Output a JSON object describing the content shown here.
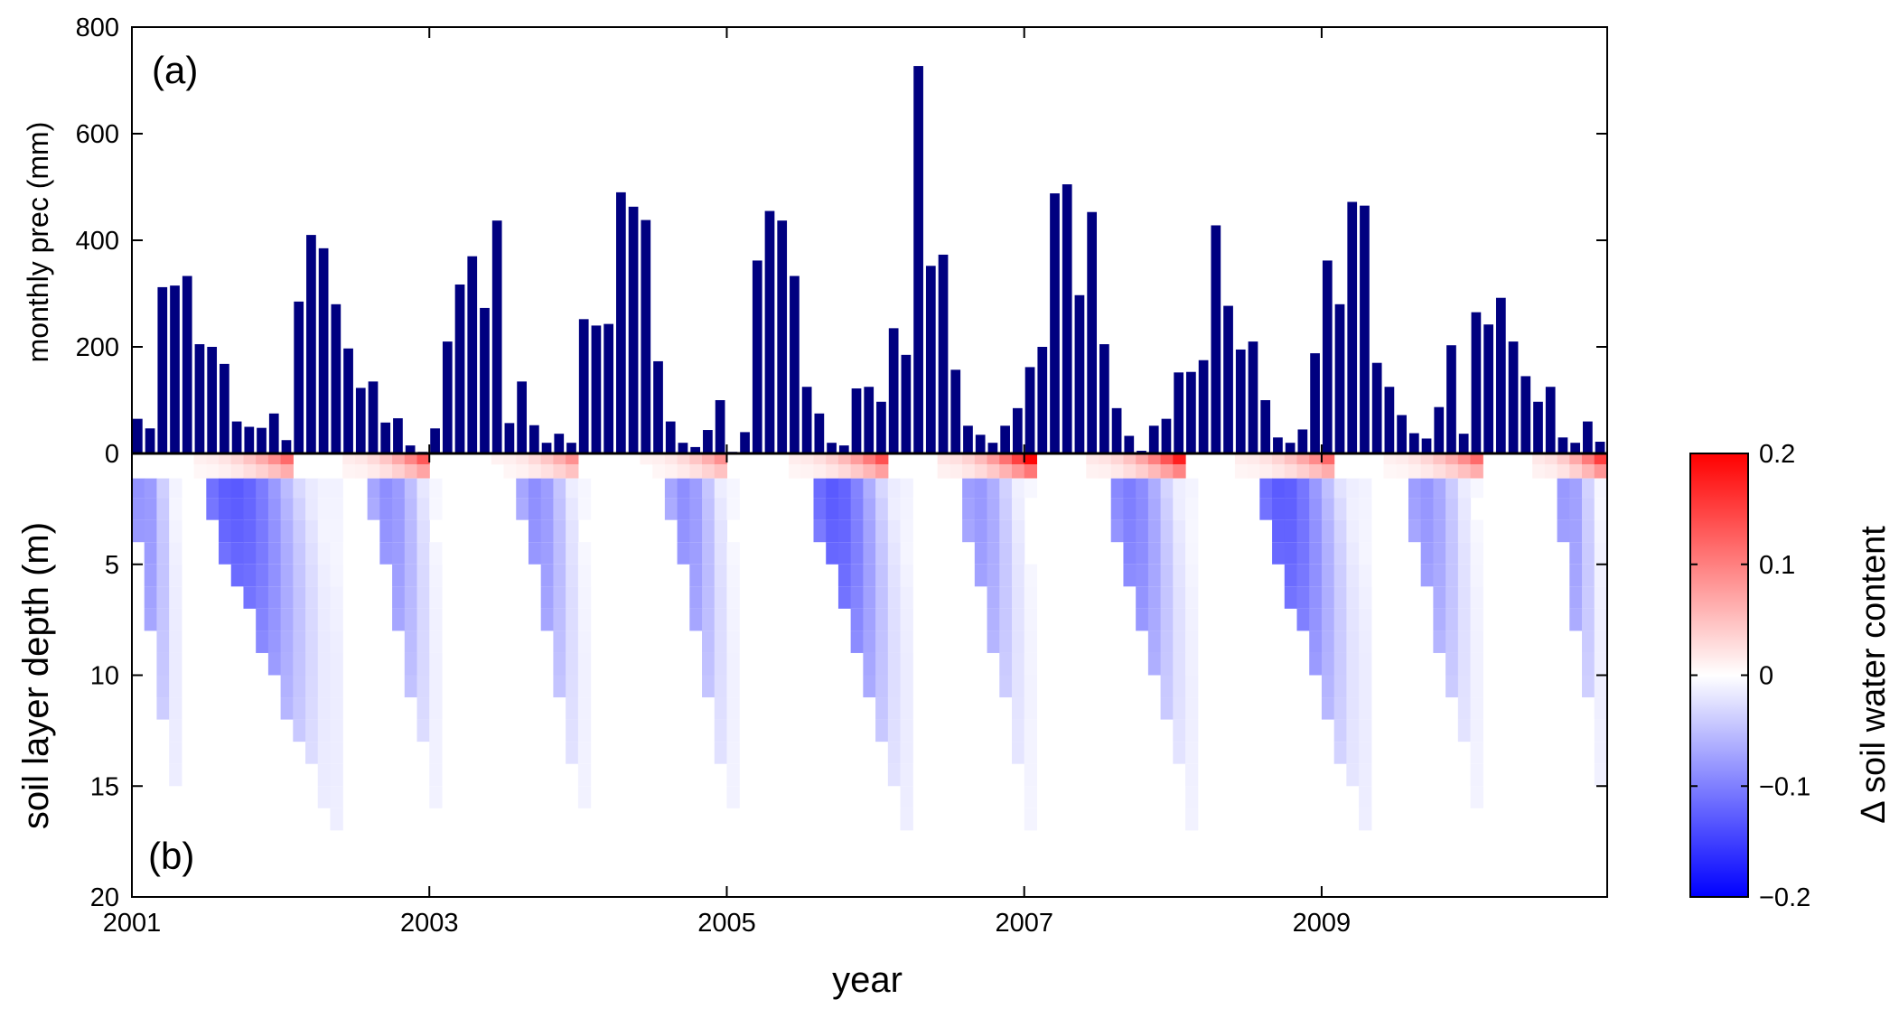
{
  "chart_data": [
    {
      "panel": "(a)",
      "type": "bar",
      "ylabel": "monthly prec (mm)",
      "ylim": [
        0,
        800
      ],
      "yticks": [
        "0",
        "200",
        "400",
        "600",
        "800"
      ],
      "xlim": [
        2001,
        2010.92
      ],
      "grid": false,
      "color": "#000080",
      "x_start": "2001-01",
      "x_step": "1 month",
      "values": [
        65,
        47,
        312,
        315,
        333,
        205,
        200,
        168,
        60,
        50,
        48,
        75,
        25,
        285,
        410,
        385,
        280,
        197,
        123,
        135,
        58,
        66,
        15,
        3,
        47,
        210,
        317,
        370,
        273,
        437,
        57,
        135,
        53,
        20,
        37,
        20,
        252,
        240,
        243,
        490,
        463,
        438,
        173,
        60,
        20,
        12,
        44,
        100,
        3,
        40,
        362,
        455,
        437,
        333,
        125,
        75,
        20,
        15,
        122,
        125,
        97,
        235,
        185,
        727,
        352,
        373,
        157,
        52,
        35,
        20,
        52,
        85,
        162,
        200,
        488,
        505,
        297,
        453,
        205,
        85,
        33,
        5,
        52,
        65,
        152,
        153,
        175,
        428,
        277,
        195,
        210,
        100,
        30,
        20,
        45,
        188,
        362,
        280,
        472,
        465,
        170,
        125,
        72,
        38,
        28,
        87,
        203,
        37,
        265,
        242,
        292,
        210,
        145,
        97,
        125,
        30,
        20,
        60,
        22
      ]
    },
    {
      "panel": "(b)",
      "type": "heatmap",
      "xlabel": "year",
      "ylabel": "soil layer depth (m)",
      "xticks": [
        "2001",
        "2003",
        "2005",
        "2007",
        "2009"
      ],
      "yticks": [
        "0",
        "5",
        "10",
        "15",
        "20"
      ],
      "ylim": [
        0,
        20
      ],
      "colorbar": {
        "label": "Δ soil water content",
        "ticks": [
          "0.2",
          "0.1",
          "0",
          "−0.1",
          "−0.2"
        ],
        "range": [
          -0.2,
          0.2
        ],
        "colormap": [
          "#0000ff",
          "#ffffff",
          "#ff0000"
        ]
      },
      "depth_layers_m": [
        0.25,
        0.75,
        1.5,
        2.5,
        3.5,
        4.5,
        5.5,
        6.5,
        7.5,
        8.5,
        9.5,
        10.5,
        11.5,
        12.5,
        13.5,
        14.5,
        15.5,
        16.5
      ],
      "dry_periods": [
        {
          "start": 2001.0,
          "end": 2001.35,
          "peak": -0.13,
          "front_m": 16.5,
          "front_end": 2001.35
        },
        {
          "start": 2001.5,
          "end": 2002.4,
          "peak": -0.19,
          "front_m": 16.5,
          "front_end": 2002.4
        },
        {
          "start": 2002.62,
          "end": 2003.1,
          "peak": -0.13,
          "front_m": 16.5,
          "front_end": 2003.1
        },
        {
          "start": 2003.62,
          "end": 2004.08,
          "peak": -0.13,
          "front_m": 16.5,
          "front_end": 2004.08
        },
        {
          "start": 2004.62,
          "end": 2005.08,
          "peak": -0.13,
          "front_m": 16.5,
          "front_end": 2005.08
        },
        {
          "start": 2005.58,
          "end": 2006.25,
          "peak": -0.19,
          "front_m": 16.5,
          "front_end": 2006.25
        },
        {
          "start": 2006.58,
          "end": 2007.08,
          "peak": -0.12,
          "front_m": 16.5,
          "front_end": 2007.08
        },
        {
          "start": 2007.58,
          "end": 2008.17,
          "peak": -0.15,
          "front_m": 16.5,
          "front_end": 2008.17
        },
        {
          "start": 2008.58,
          "end": 2009.33,
          "peak": -0.19,
          "front_m": 16.5,
          "front_end": 2009.33
        },
        {
          "start": 2009.58,
          "end": 2010.08,
          "peak": -0.12,
          "front_m": 15.5,
          "front_end": 2010.08
        },
        {
          "start": 2010.58,
          "end": 2010.92,
          "peak": -0.12,
          "front_m": 15.5,
          "front_end": 2010.92
        }
      ],
      "wet_periods": [
        {
          "start": 2001.45,
          "end": 2002.05,
          "peak": 0.12
        },
        {
          "start": 2002.45,
          "end": 2003.0,
          "peak": 0.15
        },
        {
          "start": 2003.45,
          "end": 2004.0,
          "peak": 0.1
        },
        {
          "start": 2004.45,
          "end": 2005.0,
          "peak": 0.1
        },
        {
          "start": 2005.45,
          "end": 2006.05,
          "peak": 0.14
        },
        {
          "start": 2006.45,
          "end": 2007.05,
          "peak": 0.2
        },
        {
          "start": 2007.45,
          "end": 2008.05,
          "peak": 0.18
        },
        {
          "start": 2008.45,
          "end": 2009.1,
          "peak": 0.14
        },
        {
          "start": 2009.45,
          "end": 2010.05,
          "peak": 0.12
        },
        {
          "start": 2010.45,
          "end": 2010.92,
          "peak": 0.18
        }
      ]
    }
  ]
}
